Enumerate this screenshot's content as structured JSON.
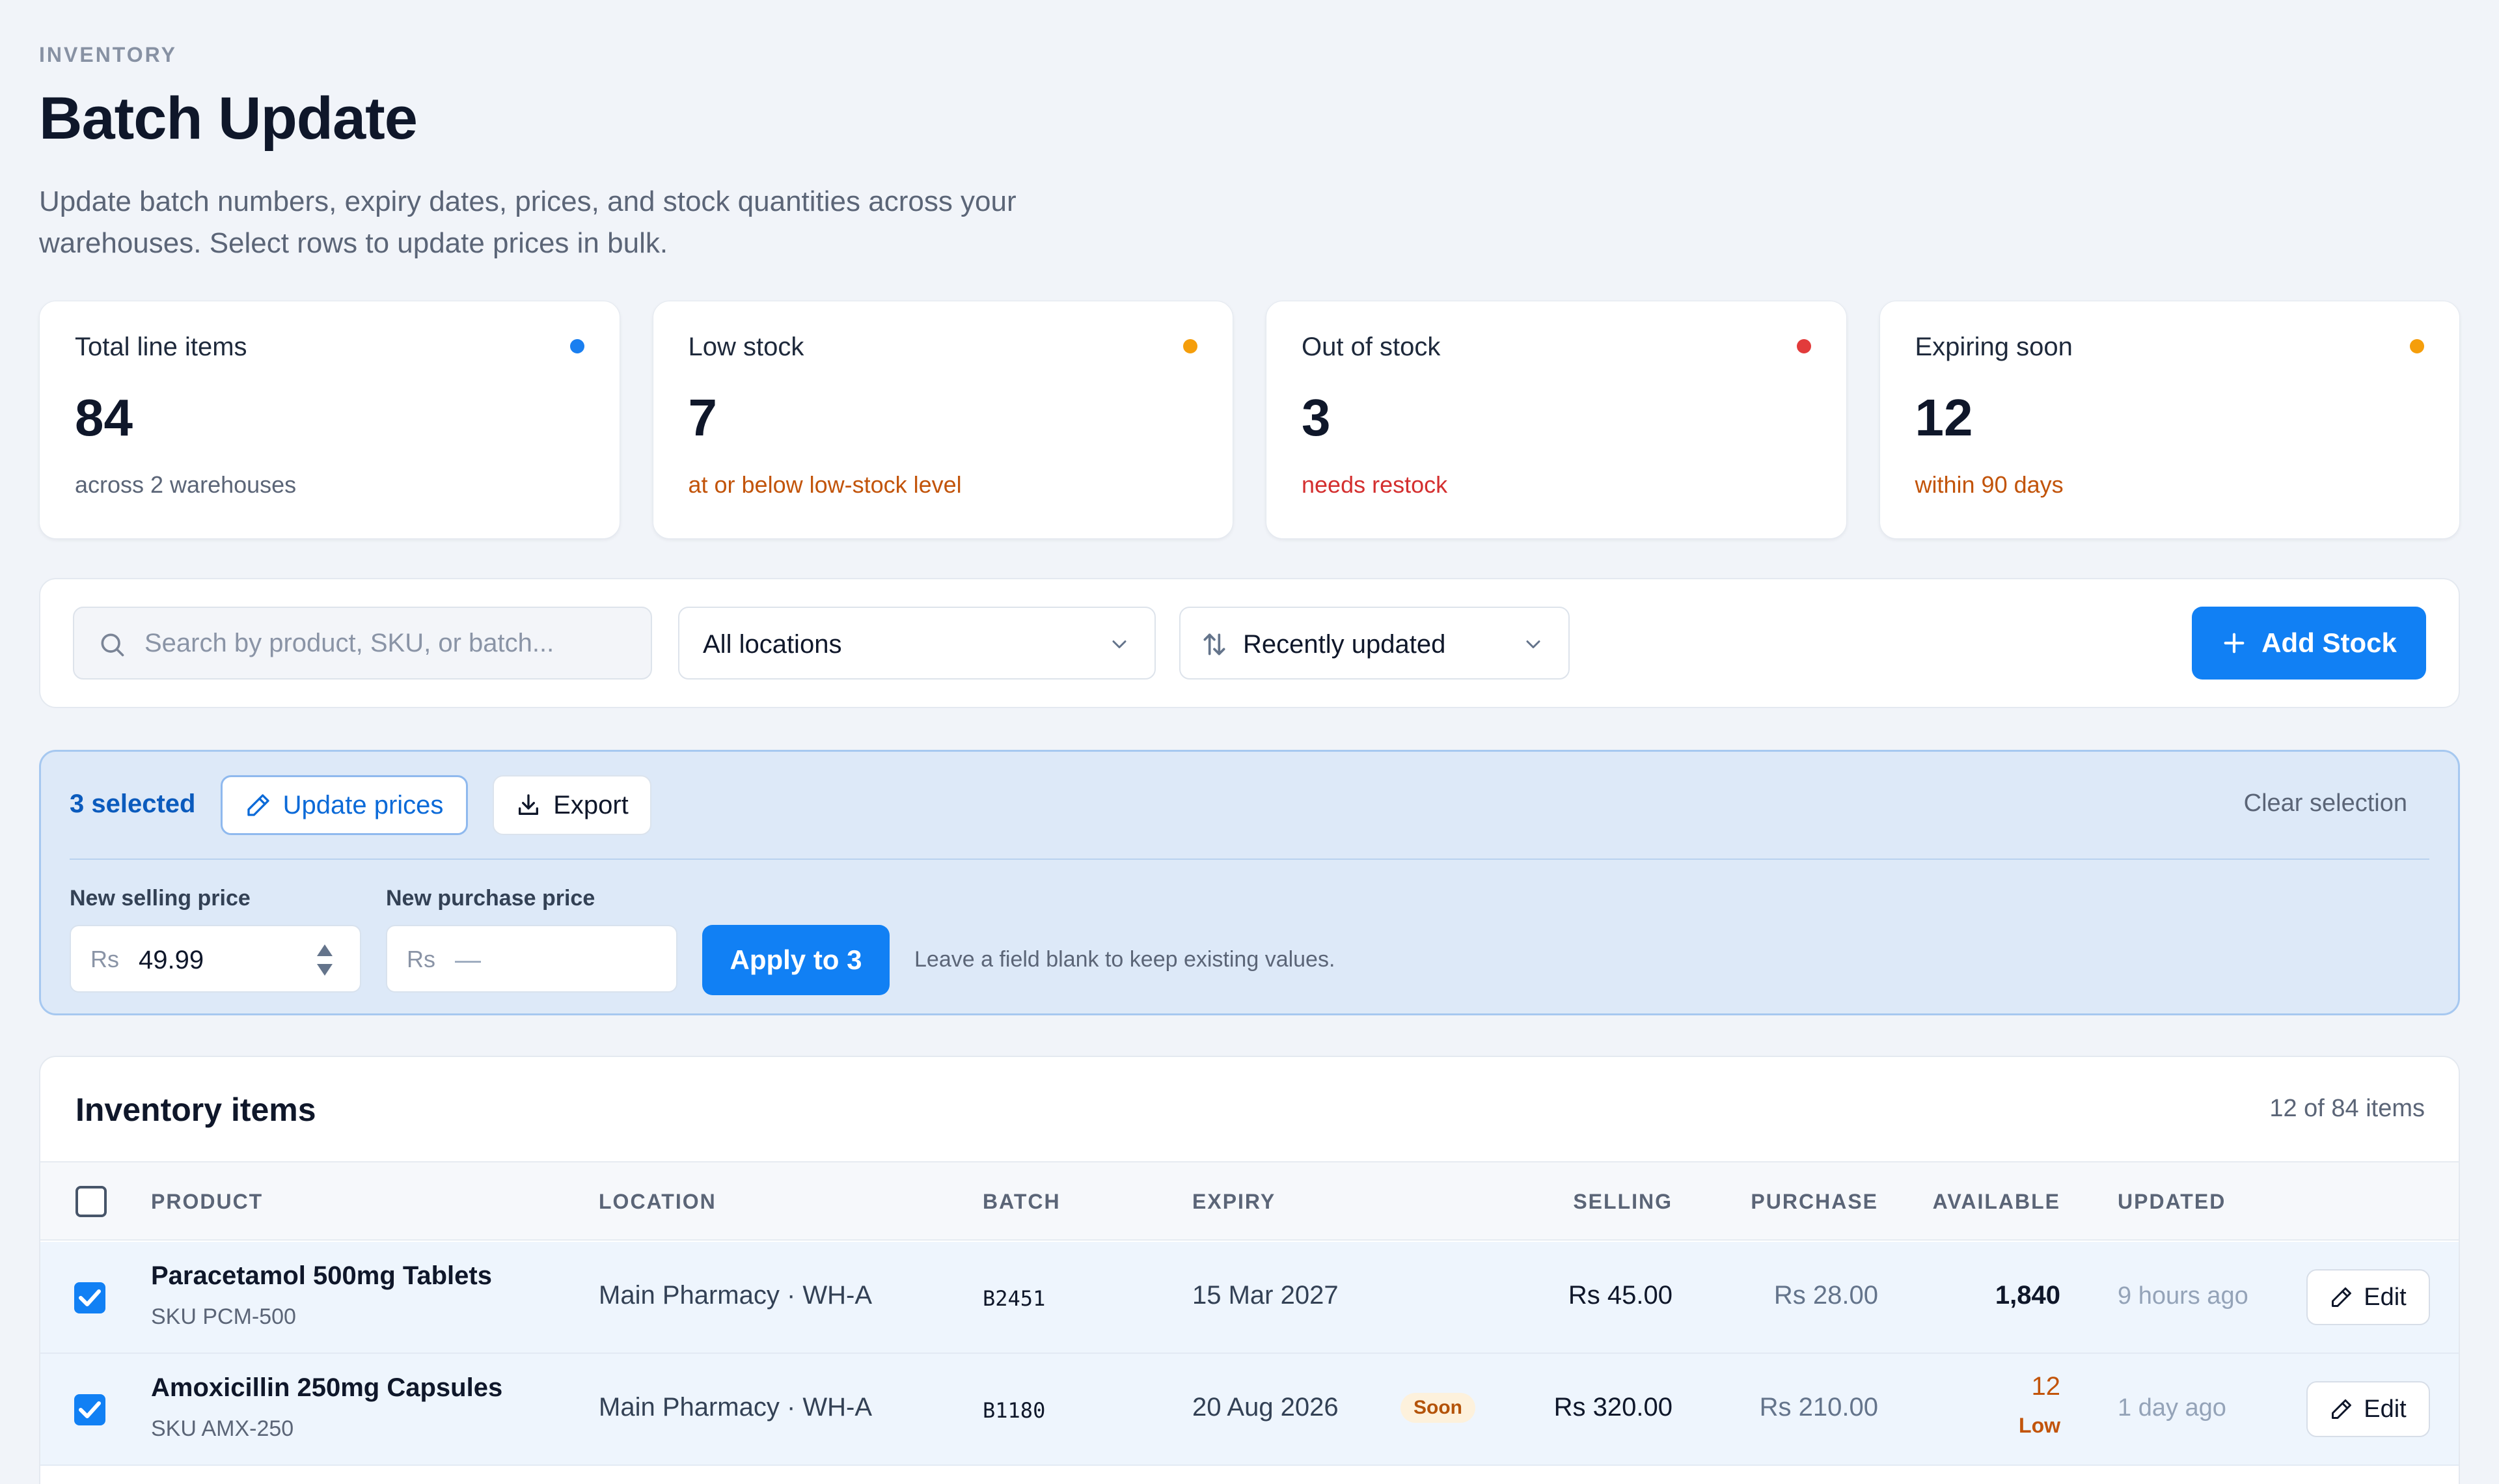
{
  "header": {
    "eyebrow": "INVENTORY",
    "title": "Batch Update",
    "subtitle": "Update batch numbers, expiry dates, prices, and stock quantities across your warehouses. Select rows to update prices in bulk."
  },
  "stats": [
    {
      "label": "Total line items",
      "value": "84",
      "note": "across 2 warehouses",
      "dot_color": "#1a7ff0",
      "note_color": "#5b6577"
    },
    {
      "label": "Low stock",
      "value": "7",
      "note": "at or below low-stock level",
      "dot_color": "#f59e0b",
      "note_color": "#c2540a"
    },
    {
      "label": "Out of stock",
      "value": "3",
      "note": "needs restock",
      "dot_color": "#e23b3b",
      "note_color": "#d42f2f"
    },
    {
      "label": "Expiring soon",
      "value": "12",
      "note": "within 90 days",
      "dot_color": "#f59e0b",
      "note_color": "#c2540a"
    }
  ],
  "toolbar": {
    "search_placeholder": "Search by product, SKU, or batch...",
    "location_select": "All locations",
    "sort_select": "Recently updated",
    "add_label": "Add Stock"
  },
  "bulk": {
    "selected_label": "3 selected",
    "update_prices_label": "Update prices",
    "export_label": "Export",
    "clear_label": "Clear selection",
    "selling_label": "New selling price",
    "purchase_label": "New purchase price",
    "currency": "Rs",
    "selling_value": "49.99",
    "purchase_placeholder": "—",
    "apply_label": "Apply to 3",
    "hint": "Leave a field blank to keep existing values."
  },
  "table": {
    "title": "Inventory items",
    "count": "12 of 84 items",
    "columns": {
      "product": "PRODUCT",
      "location": "LOCATION",
      "batch": "BATCH",
      "expiry": "EXPIRY",
      "selling": "SELLING",
      "purchase": "PURCHASE",
      "available": "AVAILABLE",
      "updated": "UPDATED"
    },
    "edit_label": "Edit",
    "rows": [
      {
        "name": "Paracetamol 500mg Tablets",
        "sku": "SKU PCM-500",
        "location": "Main Pharmacy · WH-A",
        "batch": "B2451",
        "expiry": "15 Mar 2027",
        "selling": "Rs 45.00",
        "purchase": "Rs 28.00",
        "available": "1,840",
        "updated": "9 hours ago"
      },
      {
        "name": "Amoxicillin 250mg Capsules",
        "sku": "SKU AMX-250",
        "location": "Main Pharmacy · WH-A",
        "batch": "B1180",
        "expiry": "20 Aug 2026",
        "expiry_badge": "Soon",
        "selling": "Rs 320.00",
        "purchase": "Rs 210.00",
        "available": "12",
        "available_badge": "Low",
        "updated": "1 day ago"
      }
    ]
  },
  "colors": {
    "accent": "#1180f4",
    "warning": "#c2540a",
    "danger": "#d42f2f"
  }
}
